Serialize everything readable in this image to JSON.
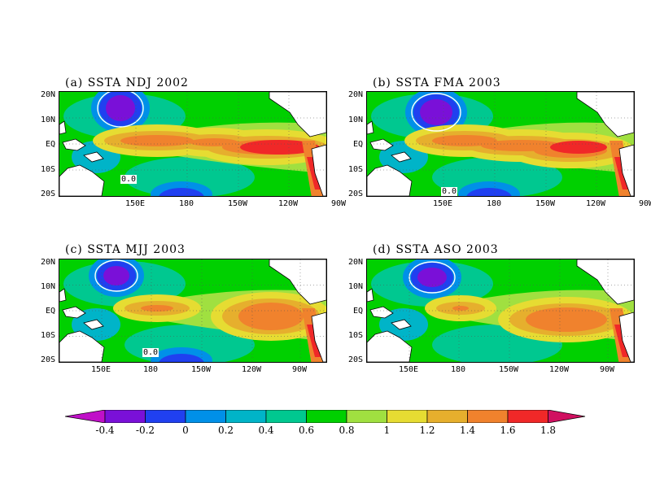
{
  "panels": [
    {
      "id": "a",
      "title": "(a) SSTA NDJ 2002",
      "contour_label": "0.0"
    },
    {
      "id": "b",
      "title": "(b) SSTA FMA 2003",
      "contour_label": "0.0"
    },
    {
      "id": "c",
      "title": "(c) SSTA MJJ 2003",
      "contour_label": "0.0"
    },
    {
      "id": "d",
      "title": "(d) SSTA ASO 2003",
      "contour_label": ""
    }
  ],
  "lat_labels": [
    "20N",
    "10N",
    "EQ",
    "10S",
    "20S"
  ],
  "lon_labels_top": [
    "150E",
    "180",
    "150W",
    "120W",
    "90W"
  ],
  "lon_labels_bottom": [
    "150E",
    "180",
    "150W",
    "120W",
    "90W"
  ],
  "colorbar": {
    "labels": [
      "-0.4",
      "-0.2",
      "0",
      "0.2",
      "0.4",
      "0.6",
      "0.8",
      "1",
      "1.2",
      "1.4",
      "1.6",
      "1.8"
    ],
    "colors": [
      "#c010c8",
      "#7a10d8",
      "#2040f0",
      "#0090e8",
      "#00b4c8",
      "#00c890",
      "#00d000",
      "#a0e040",
      "#e6dc32",
      "#e6af2d",
      "#f0822d",
      "#f02828",
      "#d01060"
    ]
  },
  "colors": {
    "land": "#ffffff",
    "coast": "#000000",
    "background": "#ffffff"
  }
}
